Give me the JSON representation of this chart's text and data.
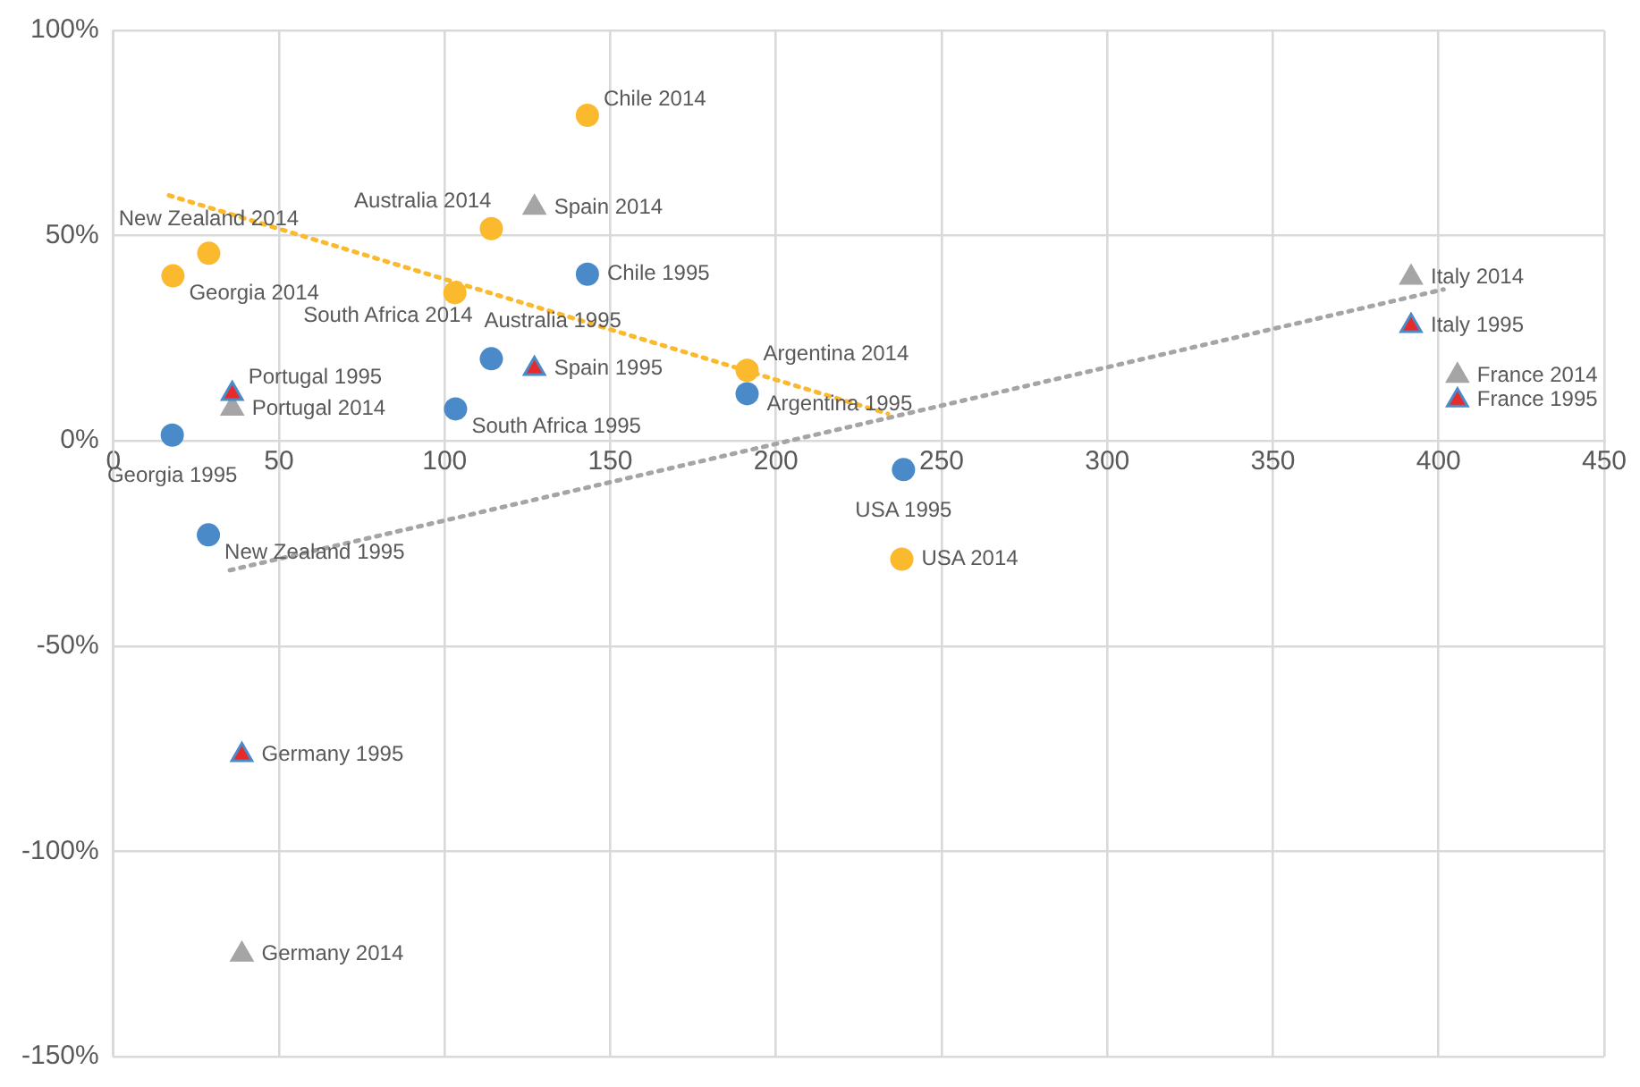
{
  "chart_data": {
    "type": "scatter",
    "grid": true,
    "legend": false,
    "xlim": [
      0,
      450
    ],
    "xticks": [
      0,
      50,
      100,
      150,
      200,
      250,
      300,
      350,
      400,
      450
    ],
    "ylim": [
      -150,
      100
    ],
    "yticks": [
      {
        "value": -150,
        "label": "-150%"
      },
      {
        "value": -100,
        "label": "-100%"
      },
      {
        "value": -50,
        "label": "-50%"
      },
      {
        "value": 0,
        "label": "0%"
      },
      {
        "value": 50,
        "label": "50%"
      },
      {
        "value": 100,
        "label": "100%"
      }
    ],
    "series": [
      {
        "marker": "circle",
        "color": "#4a8ac8",
        "x": [
          17.8,
          28.7,
          114.1,
          103.3,
          143.1,
          191.3,
          238.5
        ],
        "values": [
          1.4,
          -22.9,
          20.0,
          7.8,
          40.6,
          11.5,
          -7.0
        ],
        "value_labels": [
          "Georgia 1995",
          "New Zealand 1995",
          "Australia 1995",
          "South Africa 1995",
          "Chile 1995",
          "Argentina 1995",
          "USA 1995"
        ]
      },
      {
        "marker": "circle",
        "color": "#fbb92e",
        "x": [
          143.1,
          114.1,
          28.8,
          18.0,
          103.1,
          191.3,
          238.0
        ],
        "values": [
          79.3,
          51.7,
          45.7,
          40.2,
          36.1,
          17.2,
          -28.8
        ],
        "value_labels": [
          "Chile 2014",
          "Australia 2014",
          "New Zealand 2014",
          "Georgia 2014",
          "South Africa 2014",
          "Argentina 2014",
          "USA 2014"
        ]
      },
      {
        "marker": "triangle",
        "color": "#e52b2b",
        "x": [
          35.9,
          127.1,
          38.8,
          391.7,
          405.7
        ],
        "values": [
          11.5,
          17.6,
          -76.5,
          28.0,
          9.9
        ],
        "value_labels": [
          "Portugal 1995",
          "Spain 1995",
          "Germany 1995",
          "Italy 1995",
          "France 1995"
        ]
      },
      {
        "marker": "triangle",
        "color": "#a5a5a5",
        "x": [
          35.9,
          127.1,
          38.8,
          391.7,
          405.7
        ],
        "values": [
          7.9,
          56.8,
          -125.1,
          39.8,
          15.9
        ],
        "value_labels": [
          "Portugal 2014",
          "Spain 2014",
          "Germany 2014",
          "Italy 2014",
          "France 2014"
        ]
      },
      {
        "type": "line",
        "marker": "none",
        "line_style": "dotted",
        "color": "#fbb92e",
        "x": [
          16.8,
          233.8
        ],
        "values": [
          59.8,
          6.6
        ]
      },
      {
        "type": "line",
        "marker": "none",
        "line_style": "dotted",
        "color": "#a5a5a5",
        "x": [
          35.2,
          401.5
        ],
        "values": [
          -31.5,
          36.9
        ]
      }
    ]
  }
}
